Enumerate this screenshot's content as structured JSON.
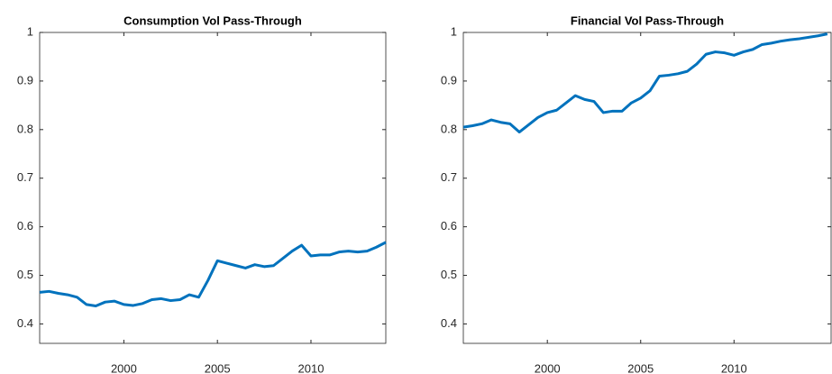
{
  "chart_data": [
    {
      "type": "line",
      "title": "Consumption Vol Pass-Through",
      "x": [
        1995.5,
        1996,
        1996.5,
        1997,
        1997.5,
        1998,
        1998.5,
        1999,
        1999.5,
        2000,
        2000.5,
        2001,
        2001.5,
        2002,
        2002.5,
        2003,
        2003.5,
        2004,
        2004.5,
        2005,
        2005.5,
        2006,
        2006.5,
        2007,
        2007.5,
        2008,
        2008.5,
        2009,
        2009.5,
        2010,
        2010.5,
        2011,
        2011.5,
        2012,
        2012.5,
        2013,
        2013.5,
        2014
      ],
      "series": [
        {
          "color": "#0072bd",
          "values": [
            0.465,
            0.467,
            0.463,
            0.46,
            0.455,
            0.44,
            0.437,
            0.445,
            0.447,
            0.44,
            0.438,
            0.442,
            0.45,
            0.452,
            0.448,
            0.45,
            0.46,
            0.455,
            0.49,
            0.53,
            0.525,
            0.52,
            0.515,
            0.522,
            0.518,
            0.52,
            0.535,
            0.55,
            0.562,
            0.54,
            0.542,
            0.542,
            0.548,
            0.55,
            0.548,
            0.55,
            0.558,
            0.568
          ]
        }
      ],
      "xlim": [
        1995.5,
        2014
      ],
      "xticks": [
        2000,
        2005,
        2010
      ],
      "ylim": [
        0.36,
        1
      ],
      "yticks": [
        0.4,
        0.5,
        0.6,
        0.7,
        0.8,
        0.9,
        1
      ]
    },
    {
      "type": "line",
      "title": "Financial Vol Pass-Through",
      "x": [
        1995.5,
        1996,
        1996.5,
        1997,
        1997.5,
        1998,
        1998.5,
        1999,
        1999.5,
        2000,
        2000.5,
        2001,
        2001.5,
        2002,
        2002.5,
        2003,
        2003.5,
        2004,
        2004.5,
        2005,
        2005.5,
        2006,
        2006.5,
        2007,
        2007.5,
        2008,
        2008.5,
        2009,
        2009.5,
        2010,
        2010.5,
        2011,
        2011.5,
        2012,
        2012.5,
        2013,
        2013.5,
        2014,
        2014.5,
        2015
      ],
      "series": [
        {
          "color": "#0072bd",
          "values": [
            0.805,
            0.808,
            0.812,
            0.82,
            0.815,
            0.812,
            0.795,
            0.81,
            0.825,
            0.835,
            0.84,
            0.855,
            0.87,
            0.862,
            0.858,
            0.835,
            0.838,
            0.838,
            0.855,
            0.865,
            0.88,
            0.91,
            0.912,
            0.915,
            0.92,
            0.935,
            0.955,
            0.96,
            0.958,
            0.953,
            0.96,
            0.965,
            0.975,
            0.978,
            0.982,
            0.985,
            0.987,
            0.99,
            0.993,
            0.997
          ]
        }
      ],
      "xlim": [
        1995.5,
        2015.2
      ],
      "xticks": [
        2000,
        2005,
        2010
      ],
      "ylim": [
        0.36,
        1
      ],
      "yticks": [
        0.4,
        0.5,
        0.6,
        0.7,
        0.8,
        0.9,
        1
      ]
    }
  ]
}
